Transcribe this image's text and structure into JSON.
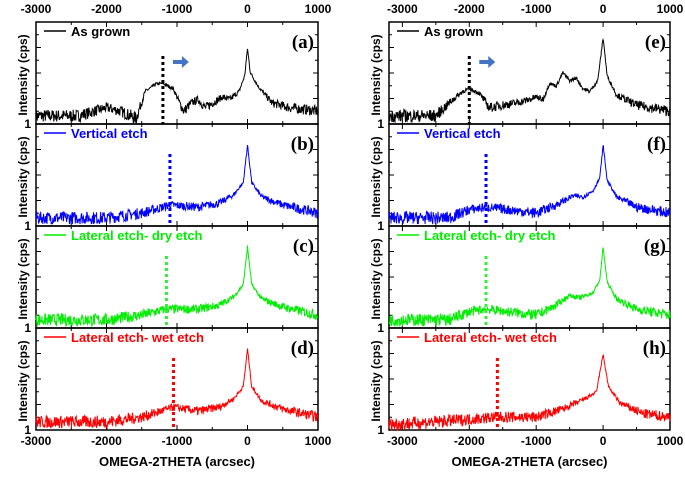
{
  "chart_data": [
    {
      "type": "line",
      "panel": "(a)",
      "legend": "As grown",
      "color": "#000000",
      "ylabel": "Intensity (cps)",
      "xlabel": "",
      "x_ticks": [
        "-3000",
        "-2000",
        "-1000",
        "0",
        "1000"
      ],
      "xlim": [
        -3000,
        1000
      ],
      "ylim": [
        1,
        3000
      ],
      "y_scale": "log",
      "y_tick_label": "1",
      "marker_x": -1200,
      "arrow": true,
      "points": [
        [
          -3000,
          2
        ],
        [
          -2400,
          2
        ],
        [
          -2000,
          4
        ],
        [
          -1800,
          3
        ],
        [
          -1580,
          1.6
        ],
        [
          -1450,
          16
        ],
        [
          -1300,
          30
        ],
        [
          -1200,
          32
        ],
        [
          -1050,
          20
        ],
        [
          -950,
          5
        ],
        [
          -900,
          3
        ],
        [
          -800,
          6
        ],
        [
          -700,
          8
        ],
        [
          -600,
          4
        ],
        [
          -450,
          7
        ],
        [
          -350,
          10
        ],
        [
          -250,
          8
        ],
        [
          -120,
          16
        ],
        [
          -40,
          60
        ],
        [
          0,
          630
        ],
        [
          40,
          80
        ],
        [
          150,
          25
        ],
        [
          250,
          12
        ],
        [
          350,
          6
        ],
        [
          600,
          4
        ],
        [
          1000,
          3
        ]
      ]
    },
    {
      "type": "line",
      "panel": "(b)",
      "legend": "Vertical etch",
      "color": "#0000ff",
      "ylabel": "Intensity (cps)",
      "xlabel": "",
      "xlim": [
        -3000,
        1000
      ],
      "ylim": [
        1,
        3000
      ],
      "y_scale": "log",
      "y_tick_label": "1",
      "marker_x": -1100,
      "points": [
        [
          -3000,
          2
        ],
        [
          -2000,
          2
        ],
        [
          -1500,
          3
        ],
        [
          -1100,
          6
        ],
        [
          -700,
          5
        ],
        [
          -400,
          7
        ],
        [
          -200,
          14
        ],
        [
          -60,
          40
        ],
        [
          0,
          1000
        ],
        [
          60,
          40
        ],
        [
          200,
          12
        ],
        [
          500,
          6
        ],
        [
          1000,
          3
        ]
      ]
    },
    {
      "type": "line",
      "panel": "(c)",
      "legend": "Lateral etch- dry etch",
      "color": "#00ee00",
      "ylabel": "Intensity (cps)",
      "xlabel": "",
      "xlim": [
        -3000,
        1000
      ],
      "ylim": [
        1,
        3000
      ],
      "y_scale": "log",
      "y_tick_label": "1",
      "marker_x": -1150,
      "points": [
        [
          -3000,
          2
        ],
        [
          -2000,
          2
        ],
        [
          -1500,
          3
        ],
        [
          -1150,
          5
        ],
        [
          -700,
          5
        ],
        [
          -400,
          7
        ],
        [
          -200,
          14
        ],
        [
          -60,
          40
        ],
        [
          0,
          1000
        ],
        [
          60,
          40
        ],
        [
          200,
          12
        ],
        [
          500,
          6
        ],
        [
          1000,
          3
        ]
      ]
    },
    {
      "type": "line",
      "panel": "(d)",
      "legend": "Lateral etch- wet etch",
      "color": "#ff0000",
      "ylabel": "Intensity (cps)",
      "xlabel": "OMEGA-2THETA (arcsec)",
      "xlim": [
        -3000,
        1000
      ],
      "ylim": [
        1,
        3000
      ],
      "y_scale": "log",
      "y_tick_label": "1",
      "marker_x": -1050,
      "points": [
        [
          -3000,
          2
        ],
        [
          -2000,
          2
        ],
        [
          -1500,
          3
        ],
        [
          -1050,
          7
        ],
        [
          -700,
          5
        ],
        [
          -400,
          7
        ],
        [
          -200,
          14
        ],
        [
          -60,
          40
        ],
        [
          0,
          1000
        ],
        [
          60,
          40
        ],
        [
          200,
          12
        ],
        [
          500,
          6
        ],
        [
          1000,
          3
        ]
      ]
    },
    {
      "type": "line",
      "panel": "(e)",
      "legend": "As grown",
      "color": "#000000",
      "ylabel": "Intensity (cps)",
      "xlabel": "",
      "x_ticks": [
        "-3000",
        "-2000",
        "-1000",
        "0",
        "1000"
      ],
      "xlim": [
        -3200,
        1000
      ],
      "ylim": [
        1,
        3000
      ],
      "y_scale": "log",
      "y_tick_label": "1",
      "marker_x": -2000,
      "arrow": true,
      "points": [
        [
          -3200,
          2
        ],
        [
          -2500,
          2
        ],
        [
          -2300,
          6
        ],
        [
          -2100,
          16
        ],
        [
          -2000,
          20
        ],
        [
          -1850,
          14
        ],
        [
          -1700,
          4
        ],
        [
          -1500,
          5
        ],
        [
          -1300,
          6
        ],
        [
          -1100,
          8
        ],
        [
          -1000,
          10
        ],
        [
          -900,
          8
        ],
        [
          -800,
          32
        ],
        [
          -700,
          25
        ],
        [
          -600,
          80
        ],
        [
          -500,
          40
        ],
        [
          -400,
          50
        ],
        [
          -300,
          20
        ],
        [
          -200,
          16
        ],
        [
          -80,
          40
        ],
        [
          0,
          1600
        ],
        [
          60,
          60
        ],
        [
          200,
          12
        ],
        [
          500,
          5
        ],
        [
          1000,
          3
        ]
      ]
    },
    {
      "type": "line",
      "panel": "(f)",
      "legend": "Vertical etch",
      "color": "#0000ff",
      "ylabel": "Intensity (cps)",
      "xlabel": "",
      "xlim": [
        -3200,
        1000
      ],
      "ylim": [
        1,
        3000
      ],
      "y_scale": "log",
      "y_tick_label": "1",
      "marker_x": -1750,
      "points": [
        [
          -3200,
          2
        ],
        [
          -2300,
          2
        ],
        [
          -2000,
          4
        ],
        [
          -1750,
          5
        ],
        [
          -1000,
          3
        ],
        [
          -700,
          6
        ],
        [
          -450,
          13
        ],
        [
          -300,
          12
        ],
        [
          -150,
          20
        ],
        [
          -50,
          60
        ],
        [
          0,
          1000
        ],
        [
          60,
          50
        ],
        [
          200,
          12
        ],
        [
          500,
          5
        ],
        [
          1000,
          3
        ]
      ]
    },
    {
      "type": "line",
      "panel": "(g)",
      "legend": "Lateral etch- dry etch",
      "color": "#00ee00",
      "ylabel": "Intensity (cps)",
      "xlabel": "",
      "xlim": [
        -3200,
        1000
      ],
      "ylim": [
        1,
        3000
      ],
      "y_scale": "log",
      "y_tick_label": "1",
      "marker_x": -1750,
      "points": [
        [
          -3200,
          2
        ],
        [
          -2300,
          2
        ],
        [
          -2000,
          4
        ],
        [
          -1750,
          5
        ],
        [
          -1000,
          3
        ],
        [
          -750,
          6
        ],
        [
          -500,
          16
        ],
        [
          -350,
          13
        ],
        [
          -150,
          20
        ],
        [
          -50,
          60
        ],
        [
          0,
          1000
        ],
        [
          60,
          50
        ],
        [
          200,
          12
        ],
        [
          500,
          5
        ],
        [
          1000,
          3
        ]
      ]
    },
    {
      "type": "line",
      "panel": "(h)",
      "legend": "Lateral etch- wet etch",
      "color": "#ff0000",
      "ylabel": "Intensity (cps)",
      "xlabel": "OMEGA-2THETA (arcsec)",
      "xlim": [
        -3200,
        1000
      ],
      "ylim": [
        1,
        3000
      ],
      "y_scale": "log",
      "y_tick_label": "1",
      "marker_x": -1580,
      "points": [
        [
          -3200,
          1.6
        ],
        [
          -2500,
          2
        ],
        [
          -1580,
          3
        ],
        [
          -1000,
          3
        ],
        [
          -600,
          6
        ],
        [
          -300,
          13
        ],
        [
          -100,
          25
        ],
        [
          0,
          630
        ],
        [
          80,
          40
        ],
        [
          250,
          10
        ],
        [
          600,
          4
        ],
        [
          1000,
          3
        ]
      ]
    }
  ]
}
